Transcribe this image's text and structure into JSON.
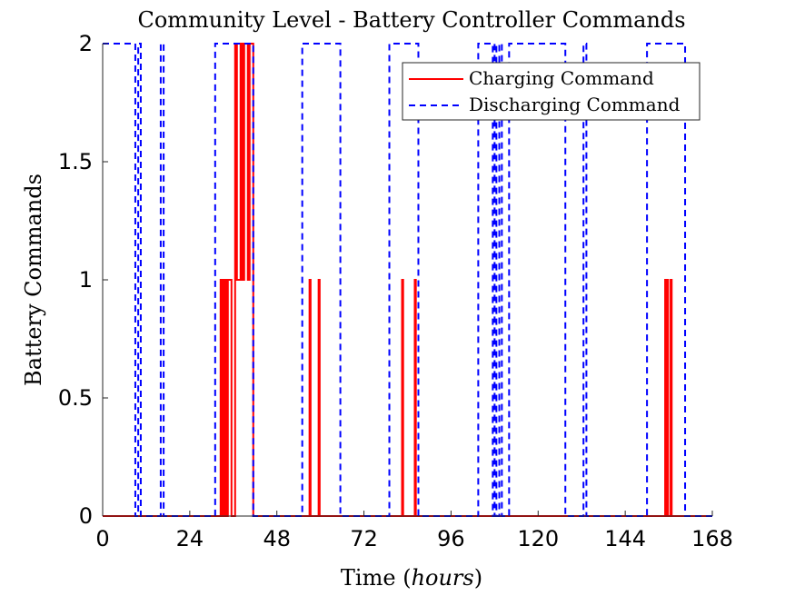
{
  "chart_data": {
    "type": "line",
    "title": "Community Level - Battery Controller Commands",
    "xlabel": "Time",
    "xlabel_unit": "hours",
    "ylabel": "Battery Commands",
    "xlim": [
      0,
      168
    ],
    "ylim": [
      0,
      2
    ],
    "xticks": [
      0,
      24,
      48,
      72,
      96,
      120,
      144,
      168
    ],
    "yticks": [
      0,
      0.5,
      1,
      1.5,
      2
    ],
    "ytick_labels": [
      "0",
      "0.5",
      "1",
      "1.5",
      "2"
    ],
    "grid": false,
    "legend_position": "top-right",
    "series": [
      {
        "name": "Charging Command",
        "color": "#ff0000",
        "style": "solid",
        "x": [
          0,
          32.5,
          32.5,
          33.0,
          33.0,
          33.5,
          33.5,
          34.0,
          34.0,
          34.5,
          34.5,
          35.5,
          35.5,
          36.5,
          36.5,
          37.0,
          37.0,
          38.0,
          38.0,
          38.5,
          38.5,
          39.0,
          39.0,
          40.0,
          40.0,
          40.5,
          40.5,
          41.5,
          41.5,
          57.0,
          57.0,
          57.3,
          57.3,
          59.5,
          59.5,
          59.8,
          59.8,
          82.5,
          82.5,
          82.8,
          82.8,
          86.0,
          86.0,
          86.3,
          86.3,
          155.0,
          155.0,
          155.2,
          155.2,
          155.5,
          155.5,
          155.8,
          155.8,
          156.5,
          156.5,
          156.8,
          156.8,
          168
        ],
        "y": [
          0,
          0,
          1,
          1,
          0,
          0,
          1,
          1,
          0,
          0,
          1,
          1,
          0,
          0,
          2,
          2,
          1,
          1,
          2,
          2,
          1,
          1,
          2,
          2,
          1,
          1,
          2,
          2,
          0,
          0,
          1,
          1,
          0,
          0,
          1,
          1,
          0,
          0,
          1,
          1,
          0,
          0,
          1,
          1,
          0,
          0,
          1,
          1,
          0,
          0,
          1,
          1,
          0,
          0,
          1,
          1,
          0,
          0
        ]
      },
      {
        "name": "Discharging Command",
        "color": "#0000ff",
        "style": "dashed",
        "x": [
          0,
          9.0,
          9.0,
          9.8,
          9.8,
          10.5,
          10.5,
          16.0,
          16.0,
          16.8,
          16.8,
          31.0,
          31.0,
          41.5,
          41.5,
          55.0,
          55.0,
          65.5,
          65.5,
          79.0,
          79.0,
          87.0,
          87.0,
          103.5,
          103.5,
          107.5,
          107.5,
          108.0,
          108.0,
          108.5,
          108.5,
          109.3,
          109.3,
          110.0,
          110.0,
          112.0,
          112.0,
          127.5,
          127.5,
          132.5,
          132.5,
          133.3,
          133.3,
          150.0,
          150.0,
          160.5,
          160.5,
          168
        ],
        "y": [
          2,
          2,
          0,
          0,
          2,
          2,
          0,
          0,
          2,
          2,
          0,
          0,
          2,
          2,
          0,
          0,
          2,
          2,
          0,
          0,
          2,
          2,
          0,
          0,
          2,
          2,
          0,
          0,
          2,
          2,
          0,
          0,
          2,
          2,
          0,
          0,
          2,
          2,
          0,
          0,
          2,
          2,
          0,
          0,
          2,
          2,
          0,
          0
        ]
      }
    ]
  }
}
